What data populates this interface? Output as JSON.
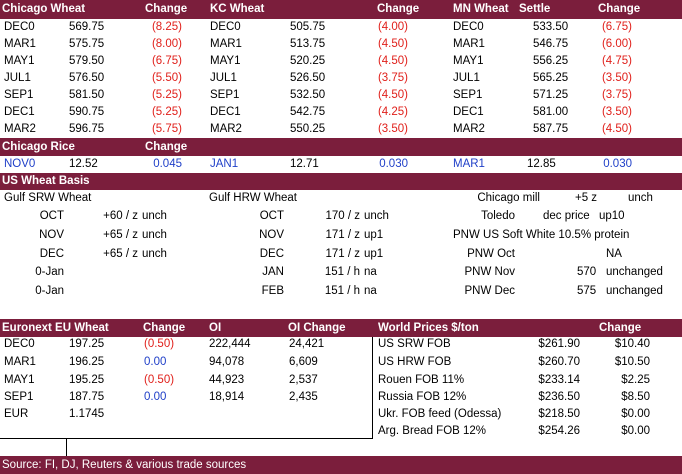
{
  "futures": {
    "headers": [
      "Chicago Wheat",
      "Change",
      "KC Wheat",
      "Change",
      "MN Wheat",
      "Settle",
      "Change"
    ],
    "chicago": [
      [
        "DEC0",
        "569.75",
        "(8.25)"
      ],
      [
        "MAR1",
        "575.75",
        "(8.00)"
      ],
      [
        "MAY1",
        "579.50",
        "(6.75)"
      ],
      [
        "JUL1",
        "576.50",
        "(5.50)"
      ],
      [
        "SEP1",
        "581.50",
        "(5.25)"
      ],
      [
        "DEC1",
        "590.75",
        "(5.25)"
      ],
      [
        "MAR2",
        "596.75",
        "(5.75)"
      ]
    ],
    "kc": [
      [
        "DEC0",
        "505.75",
        "(4.00)"
      ],
      [
        "MAR1",
        "513.75",
        "(4.50)"
      ],
      [
        "MAY1",
        "520.25",
        "(4.50)"
      ],
      [
        "JUL1",
        "526.50",
        "(3.75)"
      ],
      [
        "SEP1",
        "532.50",
        "(4.50)"
      ],
      [
        "DEC1",
        "542.75",
        "(4.25)"
      ],
      [
        "MAR2",
        "550.25",
        "(3.50)"
      ]
    ],
    "mn": [
      [
        "DEC0",
        "533.50",
        "(6.75)"
      ],
      [
        "MAR1",
        "546.75",
        "(6.00)"
      ],
      [
        "MAY1",
        "556.25",
        "(4.75)"
      ],
      [
        "JUL1",
        "565.25",
        "(3.50)"
      ],
      [
        "SEP1",
        "571.25",
        "(3.75)"
      ],
      [
        "DEC1",
        "581.00",
        "(3.50)"
      ],
      [
        "MAR2",
        "587.75",
        "(4.50)"
      ]
    ]
  },
  "rice": {
    "title": "Chicago Rice",
    "change_label": "Change",
    "row": [
      "NOV0",
      "12.52",
      "0.045",
      "JAN1",
      "12.71",
      "0.030",
      "MAR1",
      "12.85",
      "0.030"
    ]
  },
  "basis": {
    "title": "US Wheat Basis",
    "gulf_srw_title": "Gulf SRW Wheat",
    "gulf_hrw_title": "Gulf HRW Wheat",
    "srw": [
      [
        "OCT",
        "+60 / z",
        "unch"
      ],
      [
        "NOV",
        "+65 / z",
        "unch"
      ],
      [
        "DEC",
        "+65 / z",
        "unch"
      ],
      [
        "0-Jan",
        "",
        ""
      ],
      [
        "0-Jan",
        "",
        ""
      ]
    ],
    "hrw": [
      [
        "OCT",
        "170 / z",
        "unch"
      ],
      [
        "NOV",
        "171 / z",
        "up1"
      ],
      [
        "DEC",
        "171 / z",
        "up1"
      ],
      [
        "JAN",
        "151 / h",
        "na"
      ],
      [
        "FEB",
        "151 / h",
        "na"
      ]
    ],
    "right": [
      [
        "Chicago mill",
        "+5 z",
        "unch"
      ],
      [
        "Toledo",
        "dec price",
        "up10"
      ],
      [
        "PNW US Soft White 10.5% protein",
        "",
        ""
      ],
      [
        "PNW Oct",
        "",
        "NA"
      ],
      [
        "PNW Nov",
        "570",
        "unchanged"
      ],
      [
        "PNW Dec",
        "575",
        "unchanged"
      ]
    ]
  },
  "euronext": {
    "headers": [
      "Euronext EU Wheat",
      "Change",
      "OI",
      "OI Change"
    ],
    "rows": [
      [
        "DEC0",
        "197.25",
        "(0.50)",
        "222,444",
        "24,421"
      ],
      [
        "MAR1",
        "196.25",
        "0.00",
        "94,078",
        "6,609"
      ],
      [
        "MAY1",
        "195.25",
        "(0.50)",
        "44,923",
        "2,537"
      ],
      [
        "SEP1",
        "187.75",
        "0.00",
        "18,914",
        "2,435"
      ]
    ],
    "eur_label": "EUR",
    "eur_value": "1.1745"
  },
  "world": {
    "headers": [
      "World Prices $/ton",
      "Change"
    ],
    "rows": [
      [
        "US SRW FOB",
        "$261.90",
        "$10.40"
      ],
      [
        "US HRW FOB",
        "$260.70",
        "$10.50"
      ],
      [
        "Rouen FOB 11%",
        "$233.14",
        "$2.25"
      ],
      [
        "Russia FOB 12%",
        "$236.50",
        "$8.50"
      ],
      [
        "Ukr. FOB feed (Odessa)",
        "$218.50",
        "$0.00"
      ],
      [
        "Arg. Bread FOB 12%",
        "$254.26",
        "$0.00"
      ]
    ]
  },
  "source": "Source: FI, DJ, Reuters & various trade sources",
  "colors": {
    "header_bg": "#7b1e3c",
    "negative": "#e0201b",
    "neutral": "#1f3fc8"
  }
}
